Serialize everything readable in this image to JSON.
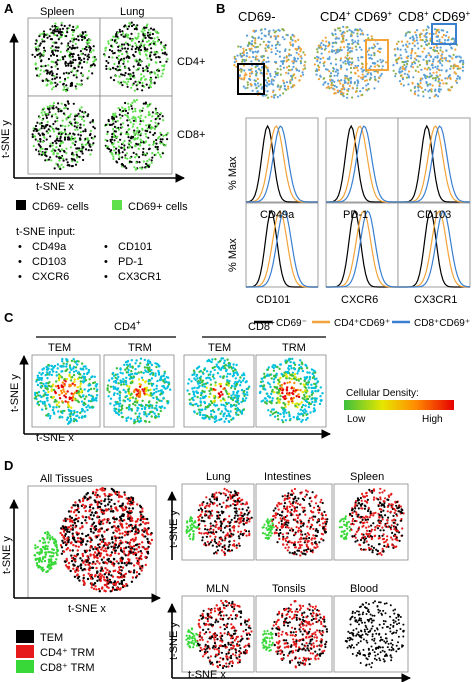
{
  "panels": {
    "a": "A",
    "b": "B",
    "c": "C",
    "d": "D"
  },
  "a": {
    "col_spleen": "Spleen",
    "col_lung": "Lung",
    "row_cd4": "CD4+",
    "row_cd8": "CD8+",
    "axis_y": "t-SNE y",
    "axis_x": "t-SNE x",
    "legend": [
      {
        "label": "CD69- cells",
        "color": "#000000"
      },
      {
        "label": "CD69+ cells",
        "color": "#5ee04c"
      }
    ],
    "input_title": "t-SNE input:",
    "inputs": [
      "CD49a",
      "CD103",
      "CXCR6",
      "CD101",
      "PD-1",
      "CX3CR1"
    ]
  },
  "b": {
    "top": {
      "cd69neg": "CD69-",
      "cd4": "CD4",
      "cd8": "CD8",
      "plus": "+",
      "cd69": " CD69"
    },
    "hist_labels": [
      "CD49a",
      "PD-1",
      "CD103",
      "CD101",
      "CXCR6",
      "CX3CR1"
    ],
    "ylabel": "% Max",
    "legend": [
      {
        "label": "CD69⁻",
        "color": "#000000"
      },
      {
        "label": "CD4⁺CD69⁺",
        "color": "#f2a33a"
      },
      {
        "label": "CD8⁺CD69⁺",
        "color": "#3a7fd0"
      }
    ],
    "box_colors": {
      "cd69neg": "#000000",
      "cd4": "#f2a33a",
      "cd8": "#3a7fd0"
    }
  },
  "c": {
    "group_cd4": "CD4",
    "group_cd8": "CD8",
    "plus": "+",
    "tem": "TEM",
    "trm": "TRM",
    "axis_y": "t-SNE y",
    "axis_x": "t-SNE x",
    "density_title": "Cellular Density:",
    "low": "Low",
    "high": "High",
    "density_colors": [
      "#00c0e0",
      "#3dbf3d",
      "#e6e600",
      "#ff8c00",
      "#e60000"
    ]
  },
  "d": {
    "all": "All Tissues",
    "tissues": [
      "Lung",
      "Intestines",
      "Spleen",
      "MLN",
      "Tonsils",
      "Blood"
    ],
    "axis_y": "t-SNE y",
    "axis_x": "t-SNE x",
    "legend": [
      {
        "label": "TEM",
        "color": "#000000"
      },
      {
        "label": "CD4⁺ TRM",
        "color": "#e61a1a"
      },
      {
        "label": "CD8⁺ TRM",
        "color": "#38d838"
      }
    ]
  }
}
